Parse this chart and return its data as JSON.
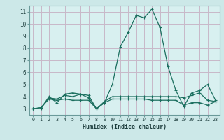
{
  "title": "",
  "xlabel": "Humidex (Indice chaleur)",
  "background_color": "#cce8e8",
  "plot_bg_color": "#d8f0f0",
  "grid_color": "#c8b8c8",
  "line_color": "#1a6e5e",
  "xlim": [
    -0.5,
    23.5
  ],
  "ylim": [
    2.5,
    11.5
  ],
  "xticks": [
    0,
    1,
    2,
    3,
    4,
    5,
    6,
    7,
    8,
    9,
    10,
    11,
    12,
    13,
    14,
    15,
    16,
    17,
    18,
    19,
    20,
    21,
    22,
    23
  ],
  "yticks": [
    3,
    4,
    5,
    6,
    7,
    8,
    9,
    10,
    11
  ],
  "series": [
    [
      3.0,
      3.0,
      4.0,
      3.5,
      4.2,
      4.3,
      4.2,
      4.1,
      3.0,
      3.5,
      5.0,
      8.1,
      9.3,
      10.7,
      10.5,
      11.2,
      9.7,
      6.5,
      4.5,
      3.2,
      4.3,
      4.5,
      5.0,
      3.7
    ],
    [
      3.0,
      3.1,
      3.9,
      3.8,
      4.1,
      4.0,
      4.2,
      3.9,
      3.0,
      3.6,
      4.0,
      4.0,
      4.0,
      4.0,
      4.0,
      4.0,
      4.0,
      4.0,
      4.0,
      3.9,
      4.1,
      4.3,
      3.7,
      3.6
    ],
    [
      3.0,
      3.1,
      3.8,
      3.7,
      3.8,
      3.7,
      3.7,
      3.7,
      3.0,
      3.5,
      3.8,
      3.8,
      3.8,
      3.8,
      3.8,
      3.7,
      3.7,
      3.7,
      3.7,
      3.3,
      3.5,
      3.5,
      3.3,
      3.6
    ]
  ]
}
